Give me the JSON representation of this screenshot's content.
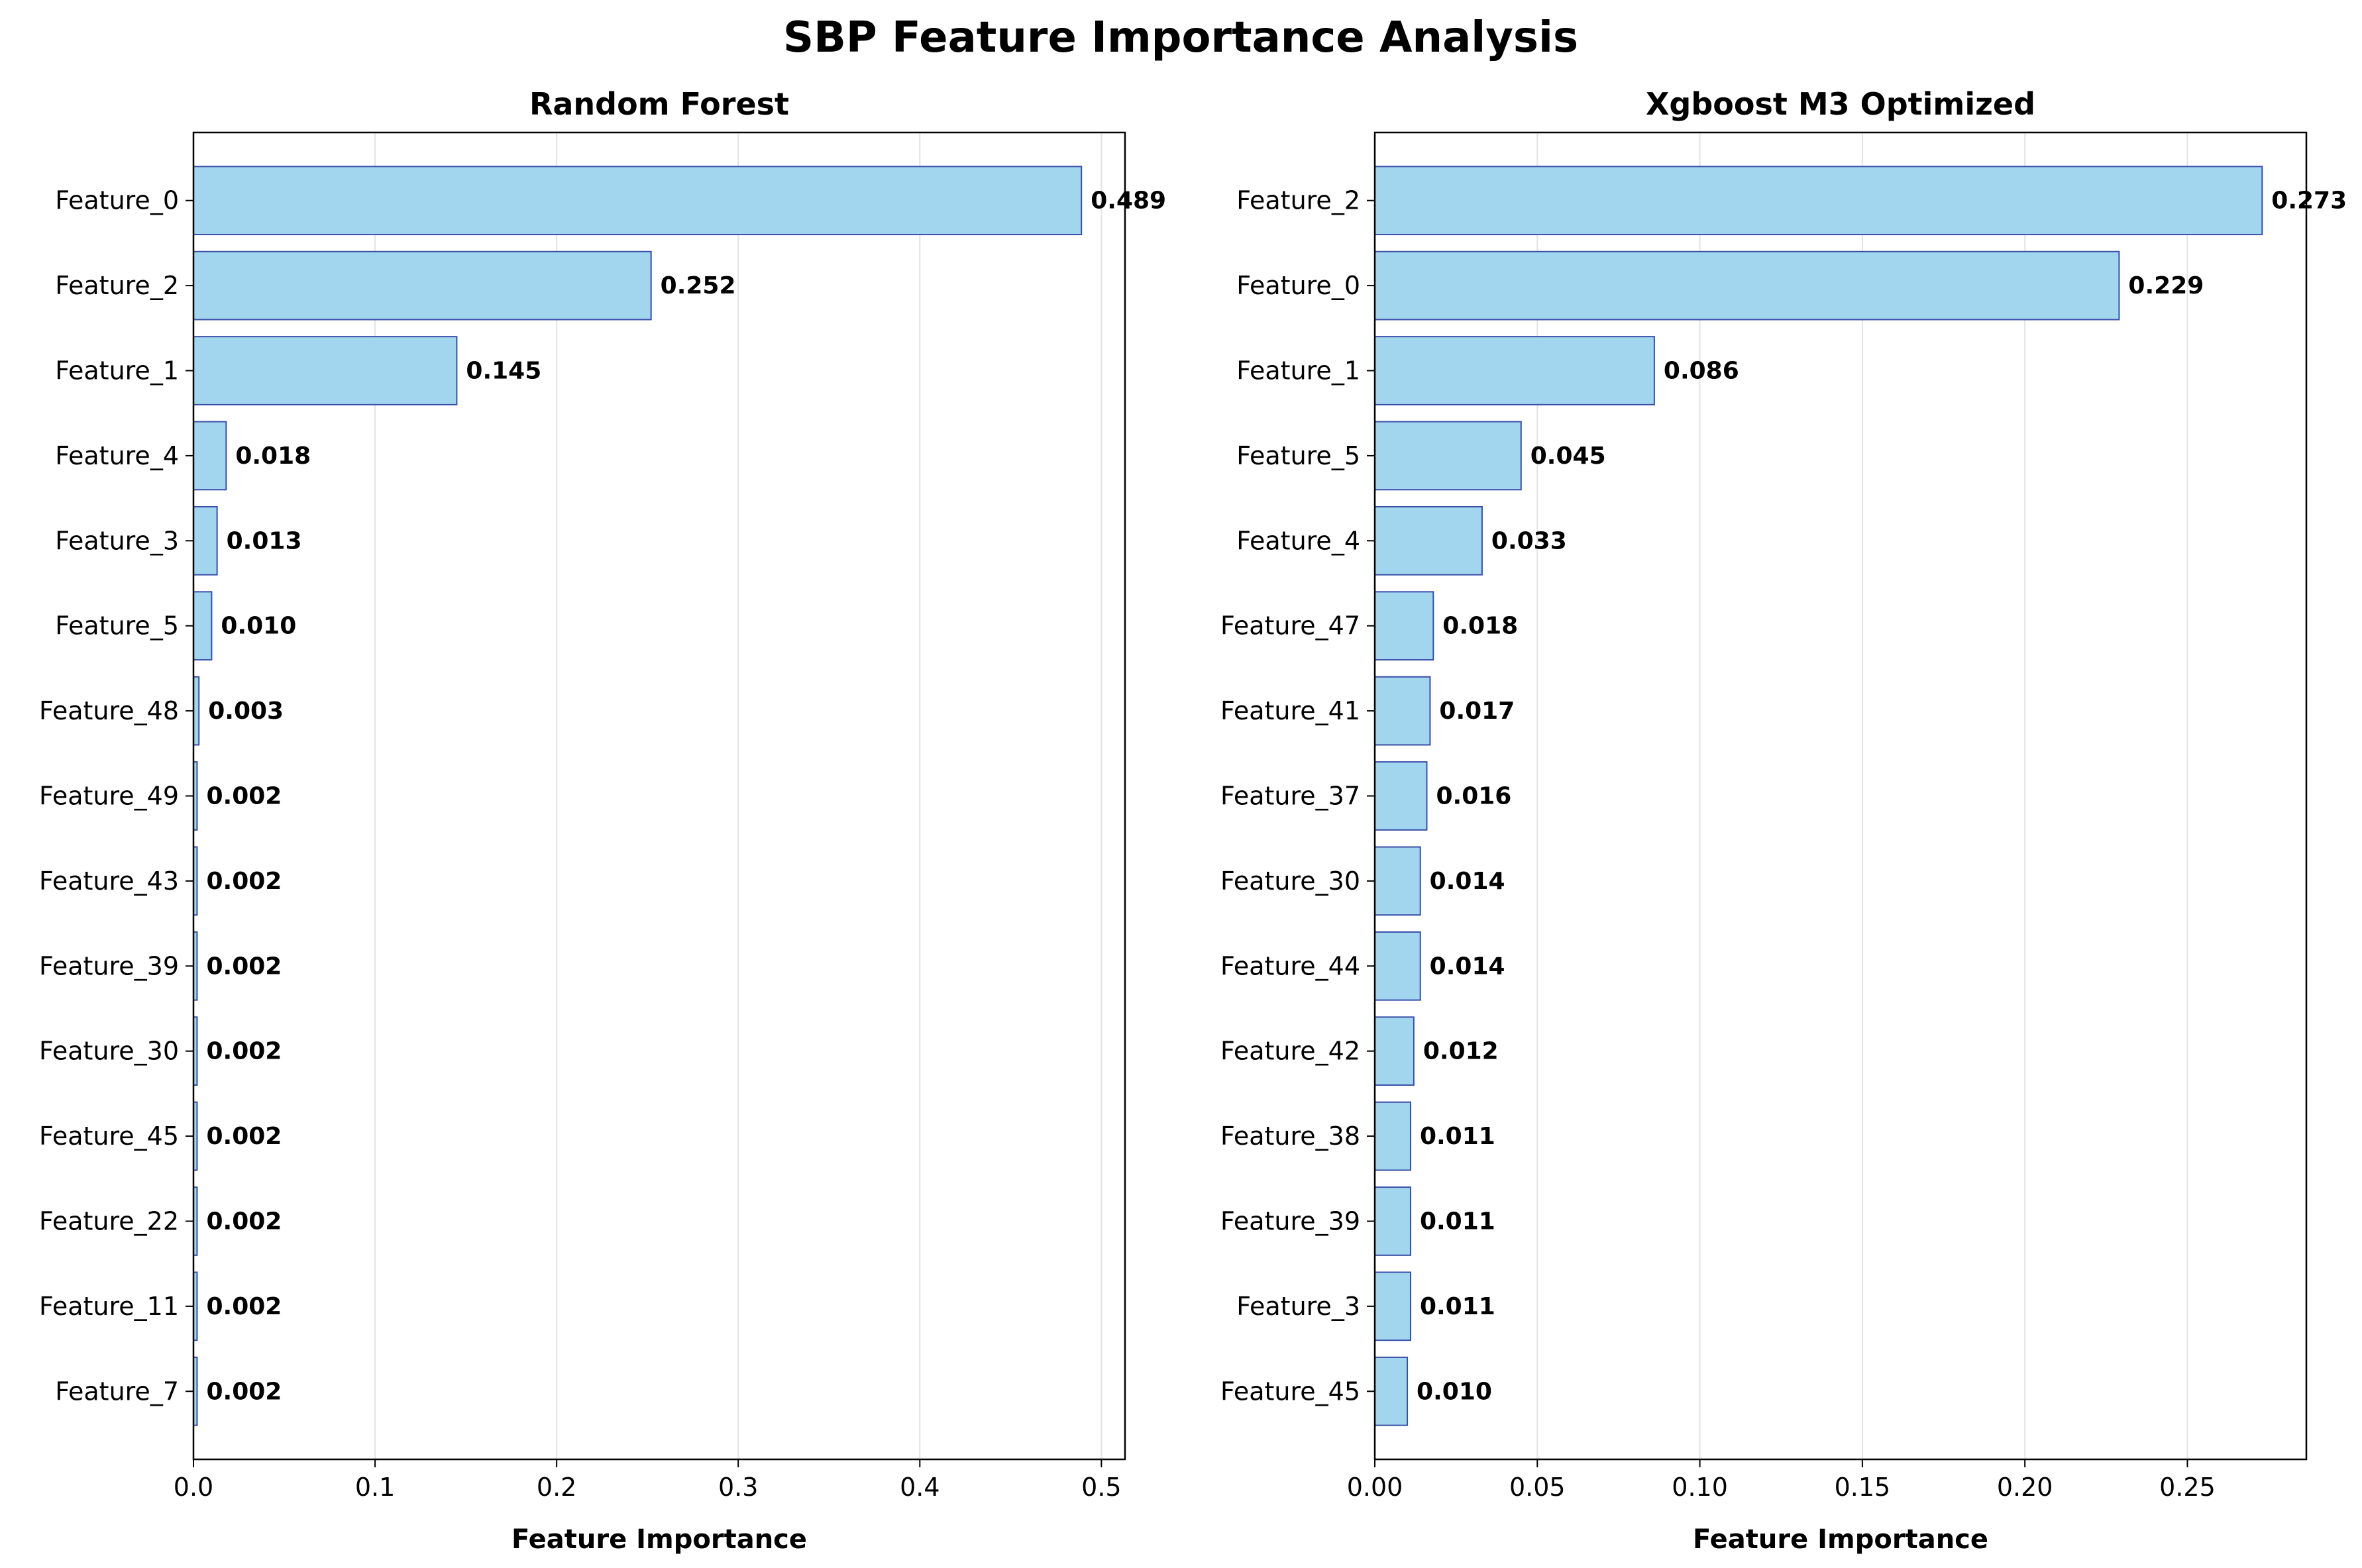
{
  "title": "SBP Feature Importance Analysis",
  "colors": {
    "bar_fill": "#a2d6ee",
    "bar_edge": "#3a4ea8",
    "grid": "#e3e3e3",
    "axis": "#000000"
  },
  "chart_data": [
    {
      "type": "bar",
      "orientation": "horizontal",
      "title": "Random Forest",
      "xlabel": "Feature Importance",
      "ylabel": "",
      "xlim": [
        0,
        0.513
      ],
      "xticks": [
        0.0,
        0.1,
        0.2,
        0.3,
        0.4,
        0.5
      ],
      "xtick_labels": [
        "0.0",
        "0.1",
        "0.2",
        "0.3",
        "0.4",
        "0.5"
      ],
      "grid": "x",
      "categories": [
        "Feature_0",
        "Feature_2",
        "Feature_1",
        "Feature_4",
        "Feature_3",
        "Feature_5",
        "Feature_48",
        "Feature_49",
        "Feature_43",
        "Feature_39",
        "Feature_30",
        "Feature_45",
        "Feature_22",
        "Feature_11",
        "Feature_7"
      ],
      "values": [
        0.489,
        0.252,
        0.145,
        0.018,
        0.013,
        0.01,
        0.003,
        0.002,
        0.002,
        0.002,
        0.002,
        0.002,
        0.002,
        0.002,
        0.002
      ],
      "value_labels": [
        "0.489",
        "0.252",
        "0.145",
        "0.018",
        "0.013",
        "0.010",
        "0.003",
        "0.002",
        "0.002",
        "0.002",
        "0.002",
        "0.002",
        "0.002",
        "0.002",
        "0.002"
      ]
    },
    {
      "type": "bar",
      "orientation": "horizontal",
      "title": "Xgboost M3 Optimized",
      "xlabel": "Feature Importance",
      "ylabel": "",
      "xlim": [
        0,
        0.2866
      ],
      "xticks": [
        0.0,
        0.05,
        0.1,
        0.15,
        0.2,
        0.25
      ],
      "xtick_labels": [
        "0.00",
        "0.05",
        "0.10",
        "0.15",
        "0.20",
        "0.25"
      ],
      "grid": "x",
      "categories": [
        "Feature_2",
        "Feature_0",
        "Feature_1",
        "Feature_5",
        "Feature_4",
        "Feature_47",
        "Feature_41",
        "Feature_37",
        "Feature_30",
        "Feature_44",
        "Feature_42",
        "Feature_38",
        "Feature_39",
        "Feature_3",
        "Feature_45"
      ],
      "values": [
        0.273,
        0.229,
        0.086,
        0.045,
        0.033,
        0.018,
        0.017,
        0.016,
        0.014,
        0.014,
        0.012,
        0.011,
        0.011,
        0.011,
        0.01
      ],
      "value_labels": [
        "0.273",
        "0.229",
        "0.086",
        "0.045",
        "0.033",
        "0.018",
        "0.017",
        "0.016",
        "0.014",
        "0.014",
        "0.012",
        "0.011",
        "0.011",
        "0.011",
        "0.010"
      ]
    }
  ]
}
